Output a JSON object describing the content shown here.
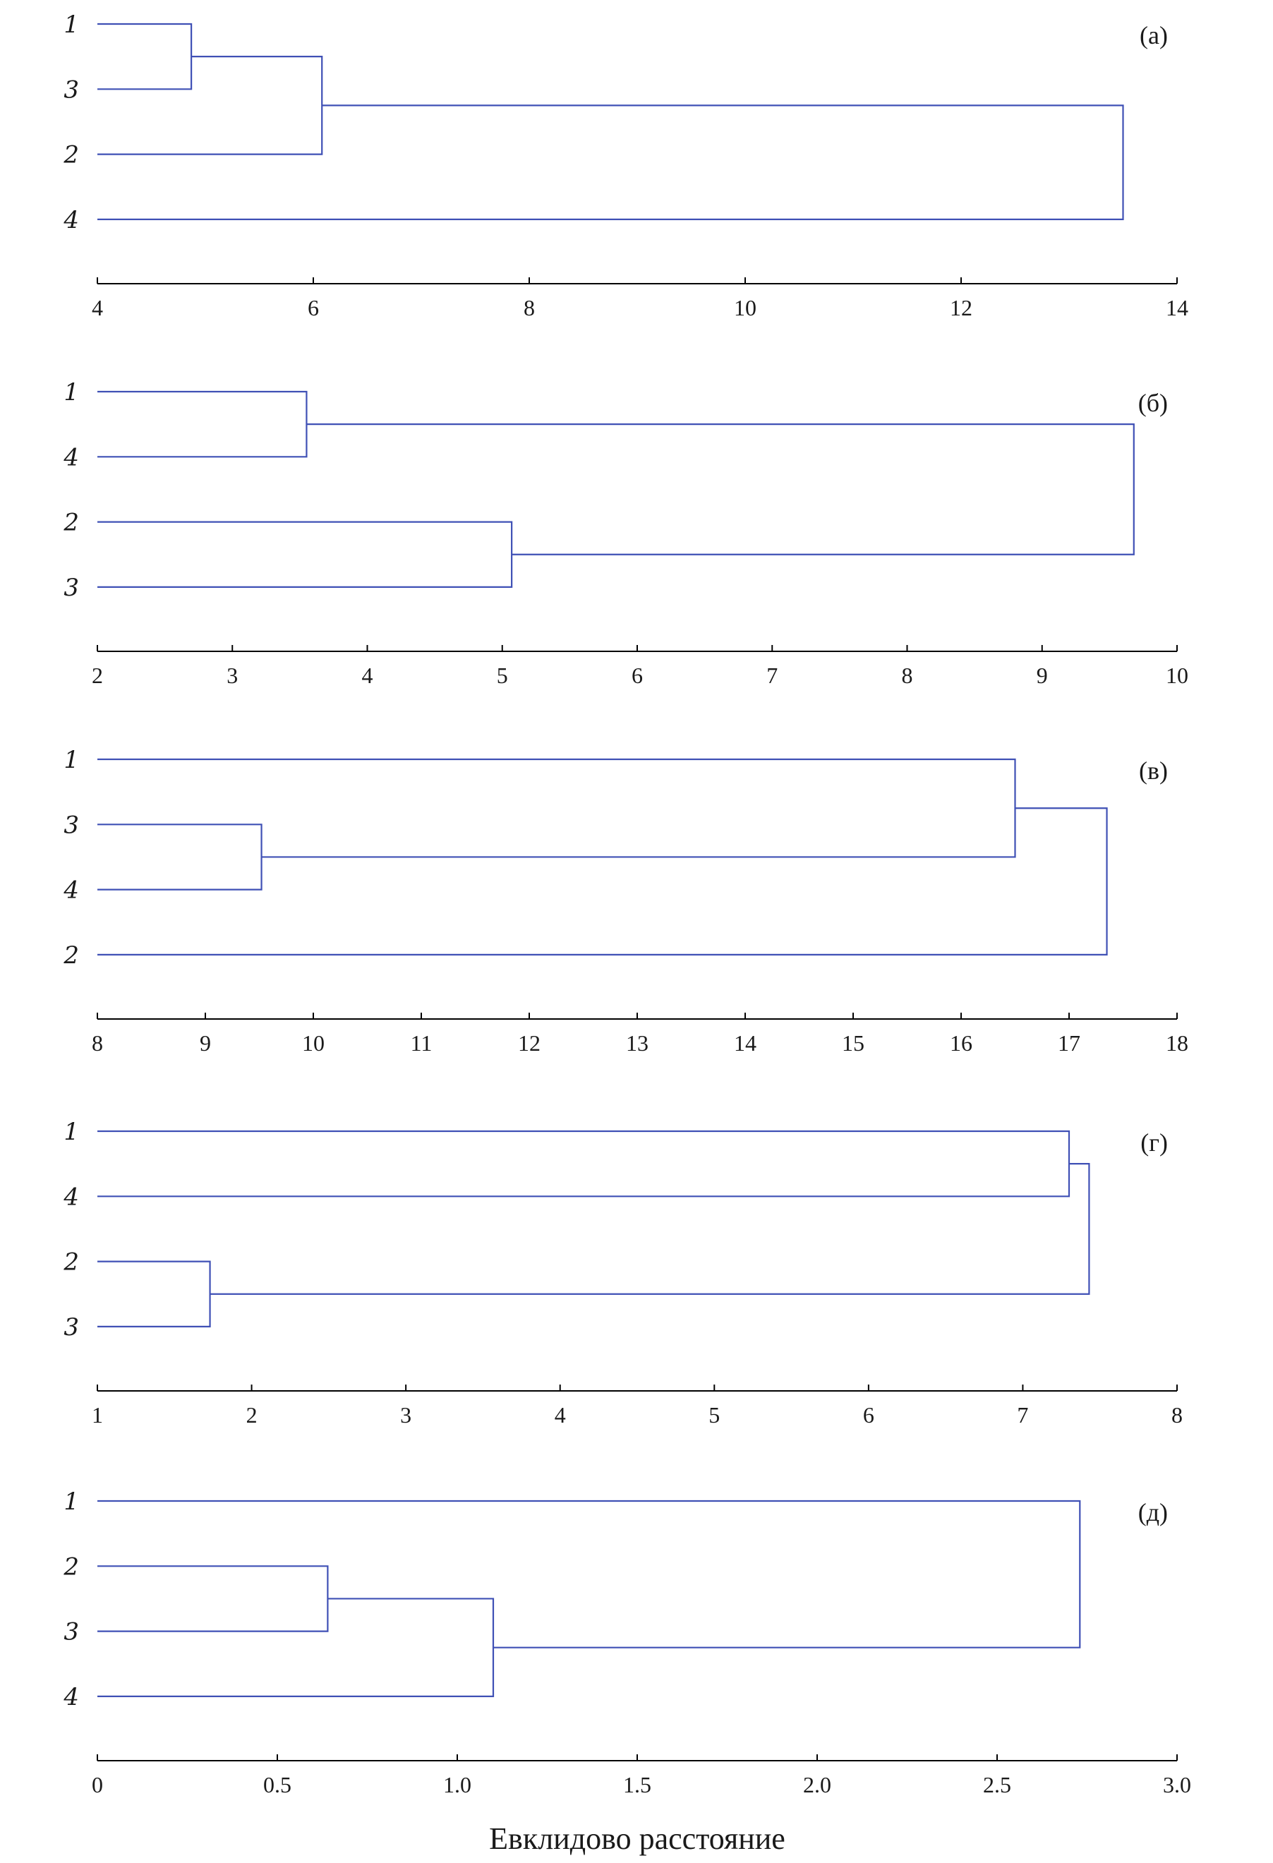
{
  "chart_data": [
    {
      "type": "dendrogram",
      "panel_label": "(а)",
      "leaves": [
        "1",
        "3",
        "2",
        "4"
      ],
      "merges": [
        {
          "left": "1",
          "right": "3",
          "distance": 4.87
        },
        {
          "left": "L1",
          "right": "2",
          "distance": 6.08
        },
        {
          "left": "L2",
          "right": "4",
          "distance": 13.5
        }
      ],
      "xlim": [
        4,
        14
      ],
      "ticks": [
        "4",
        "6",
        "8",
        "10",
        "12",
        "14"
      ],
      "tick_values": [
        4,
        6,
        8,
        10,
        12,
        14
      ]
    },
    {
      "type": "dendrogram",
      "panel_label": "(б)",
      "leaves": [
        "1",
        "4",
        "2",
        "3"
      ],
      "merges": [
        {
          "left": "1",
          "right": "4",
          "distance": 3.55
        },
        {
          "left": "2",
          "right": "3",
          "distance": 5.07
        },
        {
          "left": "L1",
          "right": "L2",
          "distance": 9.68
        }
      ],
      "xlim": [
        2,
        10
      ],
      "ticks": [
        "2",
        "3",
        "4",
        "5",
        "6",
        "7",
        "8",
        "9",
        "10"
      ],
      "tick_values": [
        2,
        3,
        4,
        5,
        6,
        7,
        8,
        9,
        10
      ]
    },
    {
      "type": "dendrogram",
      "panel_label": "(в)",
      "leaves": [
        "1",
        "3",
        "4",
        "2"
      ],
      "merges": [
        {
          "left": "3",
          "right": "4",
          "distance": 9.52
        },
        {
          "left": "1",
          "right": "L1",
          "distance": 16.5
        },
        {
          "left": "L2",
          "right": "2",
          "distance": 17.35
        }
      ],
      "xlim": [
        8,
        18
      ],
      "ticks": [
        "8",
        "9",
        "10",
        "11",
        "12",
        "13",
        "14",
        "15",
        "16",
        "17",
        "18"
      ],
      "tick_values": [
        8,
        9,
        10,
        11,
        12,
        13,
        14,
        15,
        16,
        17,
        18
      ]
    },
    {
      "type": "dendrogram",
      "panel_label": "(г)",
      "leaves": [
        "1",
        "4",
        "2",
        "3"
      ],
      "merges": [
        {
          "left": "2",
          "right": "3",
          "distance": 1.73
        },
        {
          "left": "1",
          "right": "4",
          "distance": 7.3
        },
        {
          "left": "L2",
          "right": "L1",
          "distance": 7.43
        }
      ],
      "xlim": [
        1,
        8
      ],
      "ticks": [
        "1",
        "2",
        "3",
        "4",
        "5",
        "6",
        "7",
        "8"
      ],
      "tick_values": [
        1,
        2,
        3,
        4,
        5,
        6,
        7,
        8
      ]
    },
    {
      "type": "dendrogram",
      "panel_label": "(д)",
      "leaves": [
        "1",
        "2",
        "3",
        "4"
      ],
      "merges": [
        {
          "left": "2",
          "right": "3",
          "distance": 0.64
        },
        {
          "left": "L1",
          "right": "4",
          "distance": 1.1
        },
        {
          "left": "1",
          "right": "L2",
          "distance": 2.73
        }
      ],
      "xlim": [
        0,
        3
      ],
      "ticks": [
        "0",
        "0.5",
        "1.0",
        "1.5",
        "2.0",
        "2.5",
        "3.0"
      ],
      "tick_values": [
        0,
        0.5,
        1,
        1.5,
        2,
        2.5,
        3
      ],
      "xlabel": "Евклидово расстояние"
    }
  ],
  "colors": {
    "links": "#3f50b5",
    "axis": "#000000",
    "text": "#1a1a1a"
  }
}
